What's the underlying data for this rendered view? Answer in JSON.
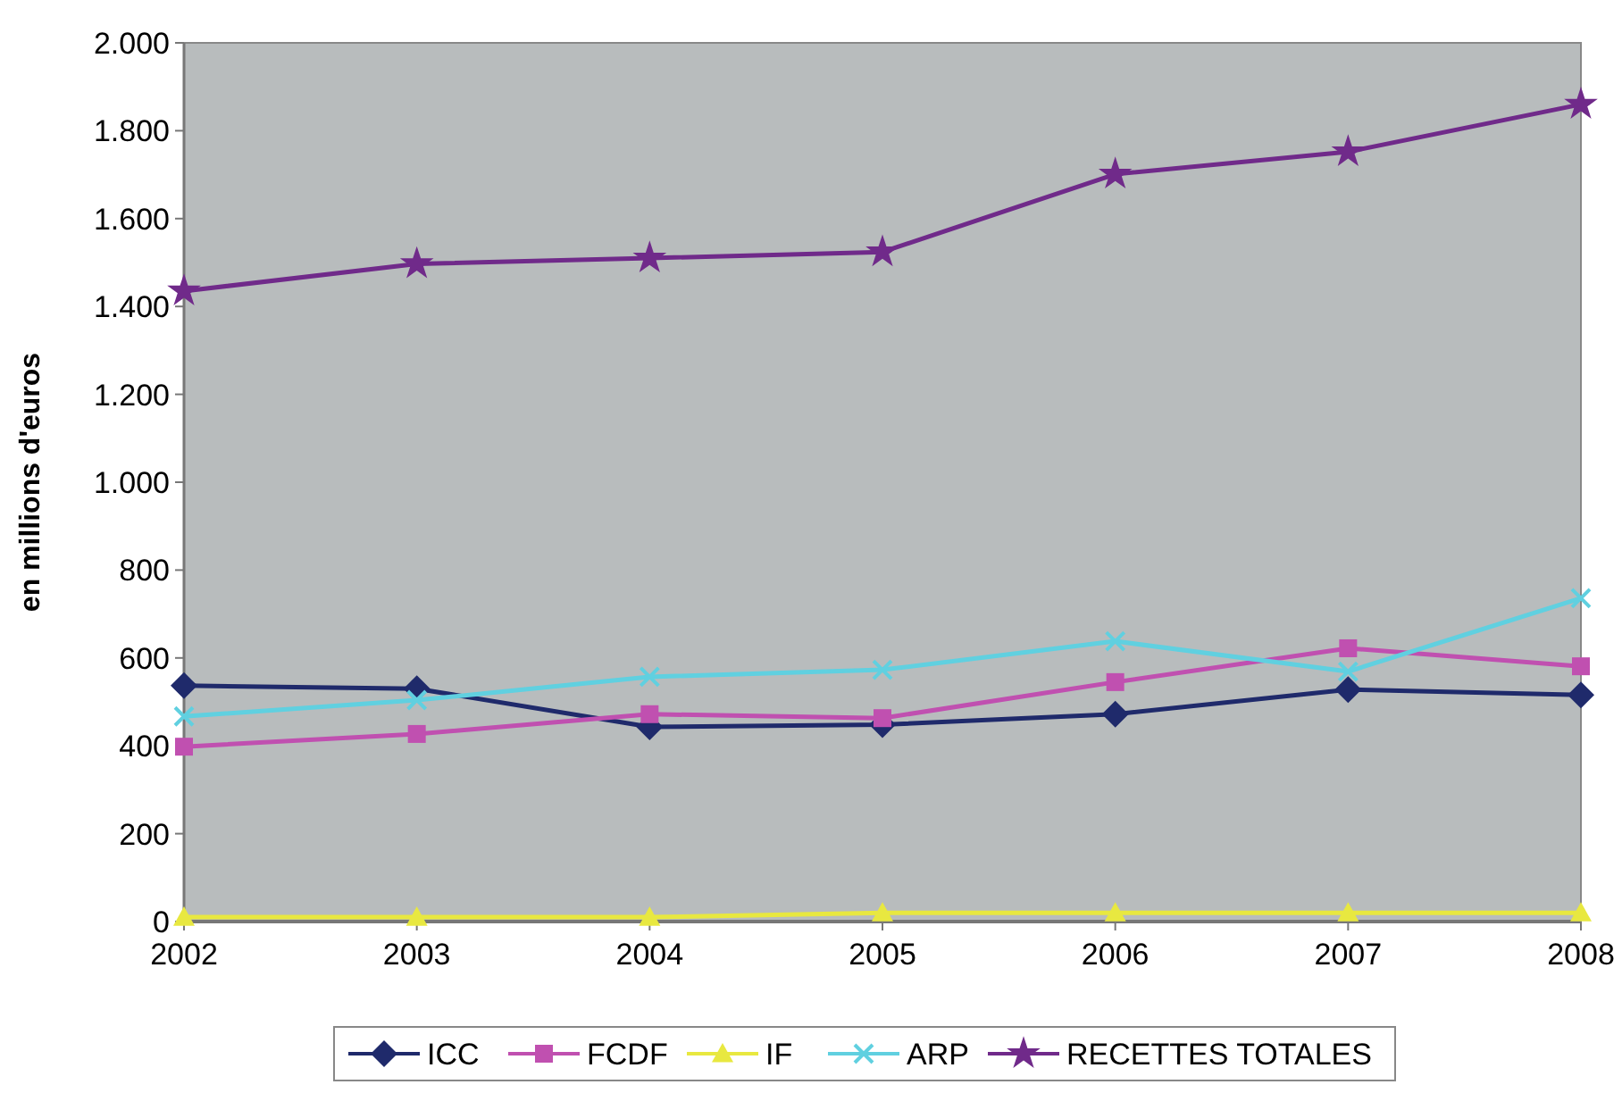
{
  "chart_data": {
    "type": "line",
    "ylabel": "en millions d'euros",
    "x": [
      2002,
      2003,
      2004,
      2005,
      2006,
      2007,
      2008
    ],
    "xlim": [
      2002,
      2008
    ],
    "xticks": [
      2002,
      2003,
      2004,
      2005,
      2006,
      2007,
      2008
    ],
    "ylim": [
      0,
      2000
    ],
    "yticks": [
      0,
      200,
      400,
      600,
      800,
      {
        "value": 1000,
        "label": "1.000"
      },
      {
        "value": 1200,
        "label": "1.200"
      },
      {
        "value": 1400,
        "label": "1.400"
      },
      {
        "value": 1600,
        "label": "1.600"
      },
      {
        "value": 1800,
        "label": "1.800"
      },
      {
        "value": 2000,
        "label": "2.000"
      }
    ],
    "grid": false,
    "legend": "bottom",
    "line_style": "solid",
    "series": [
      {
        "name": "ICC",
        "color": "#1f2a6b",
        "marker": "diamond",
        "values": [
          537,
          530,
          443,
          448,
          472,
          528,
          516
        ]
      },
      {
        "name": "FCDF",
        "color": "#c050b0",
        "marker": "square",
        "values": [
          398,
          427,
          472,
          463,
          545,
          622,
          581
        ]
      },
      {
        "name": "IF",
        "color": "#e8e840",
        "marker": "triangle",
        "values": [
          10,
          10,
          10,
          20,
          20,
          20,
          20
        ]
      },
      {
        "name": "ARP",
        "color": "#60d0e0",
        "marker": "cross",
        "values": [
          467,
          504,
          557,
          573,
          638,
          569,
          736
        ]
      },
      {
        "name": "RECETTES TOTALES",
        "color": "#702a8a",
        "marker": "star",
        "values": [
          1435,
          1497,
          1510,
          1524,
          1701,
          1752,
          1860
        ]
      }
    ]
  }
}
